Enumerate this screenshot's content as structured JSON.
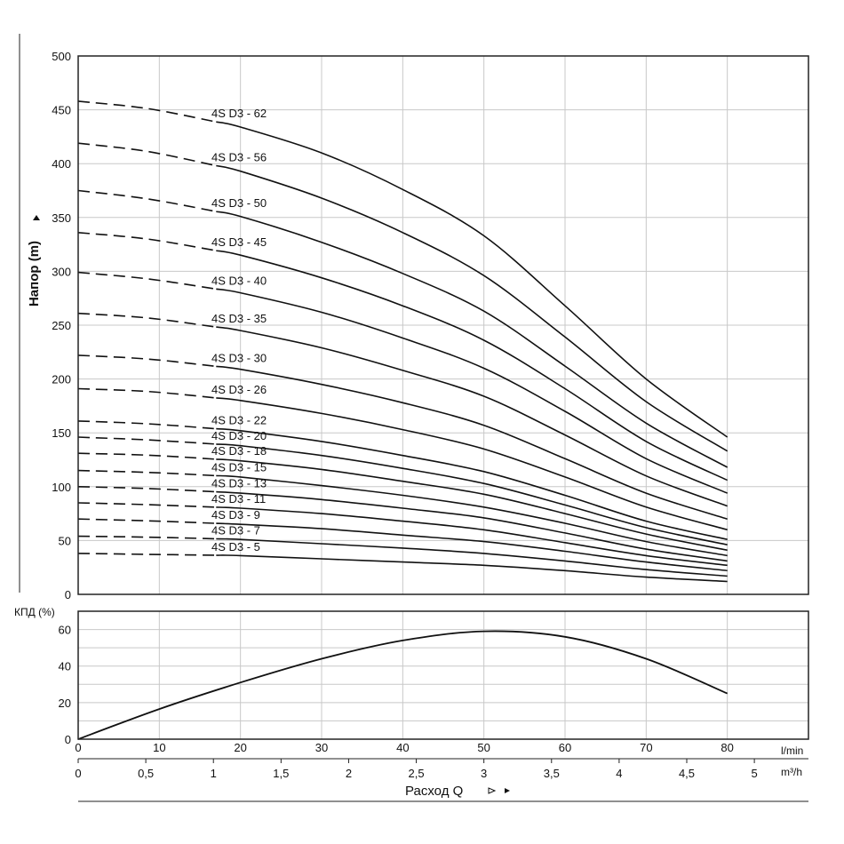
{
  "chart_data": [
    {
      "type": "line",
      "ylabel": "Напор (m)",
      "ylim": [
        0,
        500
      ],
      "yticks": [
        0,
        50,
        100,
        150,
        200,
        250,
        300,
        350,
        400,
        450,
        500
      ],
      "xlim": [
        0,
        90
      ],
      "grid": true,
      "x_unit": "l/min",
      "dashed_below_x": 17,
      "x": [
        0,
        10,
        20,
        30,
        40,
        50,
        60,
        70,
        80
      ],
      "series": [
        {
          "name": "4S D3 - 62",
          "values": [
            458,
            450,
            434,
            410,
            376,
            333,
            268,
            200,
            146
          ]
        },
        {
          "name": "4S D3 - 56",
          "values": [
            419,
            410,
            393,
            368,
            336,
            296,
            239,
            179,
            133
          ]
        },
        {
          "name": "4S D3 - 50",
          "values": [
            375,
            366,
            351,
            327,
            298,
            263,
            212,
            159,
            118
          ]
        },
        {
          "name": "4S D3 - 45",
          "values": [
            336,
            329,
            315,
            294,
            268,
            236,
            191,
            142,
            106
          ]
        },
        {
          "name": "4S D3 - 40",
          "values": [
            299,
            292,
            280,
            262,
            238,
            210,
            170,
            126,
            94
          ]
        },
        {
          "name": "4S D3 - 35",
          "values": [
            261,
            256,
            245,
            229,
            208,
            184,
            148,
            110,
            82
          ]
        },
        {
          "name": "4S D3 - 30",
          "values": [
            222,
            218,
            209,
            195,
            178,
            157,
            126,
            94,
            70
          ]
        },
        {
          "name": "4S D3 - 26",
          "values": [
            191,
            188,
            180,
            168,
            153,
            135,
            109,
            81,
            60
          ]
        },
        {
          "name": "4S D3 - 22",
          "values": [
            161,
            158,
            152,
            142,
            129,
            114,
            92,
            68,
            51
          ]
        },
        {
          "name": "4S D3 - 20",
          "values": [
            146,
            143,
            138,
            129,
            117,
            103,
            83,
            62,
            46
          ]
        },
        {
          "name": "4S D3 - 18",
          "values": [
            131,
            129,
            124,
            116,
            105,
            93,
            75,
            56,
            41
          ]
        },
        {
          "name": "4S D3 - 15",
          "values": [
            115,
            113,
            109,
            101,
            92,
            81,
            66,
            49,
            36
          ]
        },
        {
          "name": "4S D3 - 13",
          "values": [
            100,
            98,
            94,
            88,
            80,
            71,
            57,
            42,
            31
          ]
        },
        {
          "name": "4S D3 - 11",
          "values": [
            85,
            83,
            80,
            75,
            68,
            60,
            48,
            36,
            27
          ]
        },
        {
          "name": "4S D3 - 9",
          "values": [
            70,
            68,
            65,
            61,
            55,
            49,
            40,
            30,
            22
          ]
        },
        {
          "name": "4S D3 - 7",
          "values": [
            54,
            53,
            51,
            47,
            43,
            38,
            31,
            23,
            17
          ]
        },
        {
          "name": "4S D3 - 5",
          "values": [
            38,
            37,
            36,
            33,
            30,
            27,
            22,
            16,
            12
          ]
        }
      ]
    },
    {
      "type": "line",
      "ylabel": "КПД (%)",
      "ylim": [
        0,
        70
      ],
      "yticks": [
        0,
        20,
        40,
        60
      ],
      "xlim": [
        0,
        90
      ],
      "grid": true,
      "x": [
        0,
        10,
        20,
        30,
        40,
        50,
        60,
        70,
        80
      ],
      "series": [
        {
          "values": [
            0,
            16.5,
            31,
            44,
            54,
            59,
            56,
            44,
            25
          ]
        }
      ]
    }
  ],
  "x_axes": {
    "lmin": {
      "unit": "l/min",
      "ticks": [
        "0",
        "10",
        "20",
        "30",
        "40",
        "50",
        "60",
        "70",
        "80"
      ]
    },
    "m3h": {
      "unit": "m³/h",
      "ticks": [
        "0",
        "0,5",
        "1",
        "1,5",
        "2",
        "2,5",
        "3",
        "3,5",
        "4",
        "4,5",
        "5"
      ]
    },
    "xlabel": "Расход Q"
  }
}
